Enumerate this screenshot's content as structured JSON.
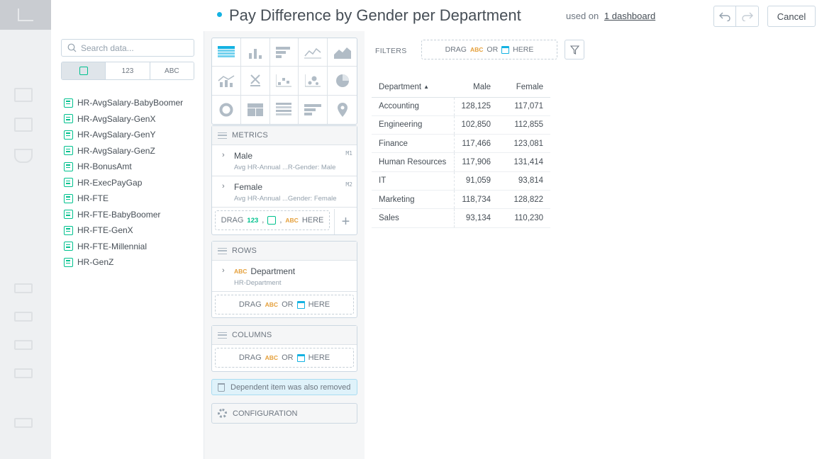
{
  "header": {
    "title": "Pay Difference by Gender per Department",
    "used_on_prefix": "used on",
    "used_on_link": "1 dashboard",
    "undo_icon": "undo-icon",
    "redo_icon": "redo-icon",
    "cancel_label": "Cancel"
  },
  "catalog": {
    "search_placeholder": "Search data...",
    "type_tabs": {
      "numbers": "123",
      "text": "ABC"
    },
    "items": [
      "HR-AvgSalary-BabyBoomer",
      "HR-AvgSalary-GenX",
      "HR-AvgSalary-GenY",
      "HR-AvgSalary-GenZ",
      "HR-BonusAmt",
      "HR-ExecPayGap",
      "HR-FTE",
      "HR-FTE-BabyBoomer",
      "HR-FTE-GenX",
      "HR-FTE-Millennial",
      "HR-GenZ"
    ]
  },
  "buckets": {
    "metrics": {
      "title": "METRICS",
      "items": [
        {
          "name": "Male",
          "sub": "Avg HR-Annual ...R-Gender: Male",
          "code": "M1"
        },
        {
          "name": "Female",
          "sub": "Avg HR-Annual ...Gender: Female",
          "code": "M2"
        }
      ],
      "drop": {
        "drag": "DRAG",
        "num": "123",
        "abc": "ABC",
        "here": "HERE"
      }
    },
    "rows": {
      "title": "ROWS",
      "item": {
        "type": "ABC",
        "name": "Department",
        "sub": "HR-Department"
      },
      "drop": {
        "drag": "DRAG",
        "abc": "ABC",
        "or": "OR",
        "here": "HERE"
      }
    },
    "columns": {
      "title": "COLUMNS",
      "drop": {
        "drag": "DRAG",
        "abc": "ABC",
        "or": "OR",
        "here": "HERE"
      }
    },
    "removed_message": "Dependent item was also removed",
    "configuration": "CONFIGURATION"
  },
  "filters": {
    "label": "FILTERS",
    "drag": "DRAG",
    "abc": "ABC",
    "or": "OR",
    "here": "HERE"
  },
  "table": {
    "headers": {
      "department": "Department",
      "male": "Male",
      "female": "Female"
    },
    "rows": [
      {
        "dept": "Accounting",
        "male": "128,125",
        "female": "117,071"
      },
      {
        "dept": "Engineering",
        "male": "102,850",
        "female": "112,855"
      },
      {
        "dept": "Finance",
        "male": "117,466",
        "female": "123,081"
      },
      {
        "dept": "Human Resources",
        "male": "117,906",
        "female": "131,414"
      },
      {
        "dept": "IT",
        "male": "91,059",
        "female": "93,814"
      },
      {
        "dept": "Marketing",
        "male": "118,734",
        "female": "128,822"
      },
      {
        "dept": "Sales",
        "male": "93,134",
        "female": "110,230"
      }
    ]
  },
  "colors": {
    "accent": "#14b2e2",
    "attribute": "#e5a03b",
    "measure": "#00c18e",
    "text": "#464e56"
  }
}
